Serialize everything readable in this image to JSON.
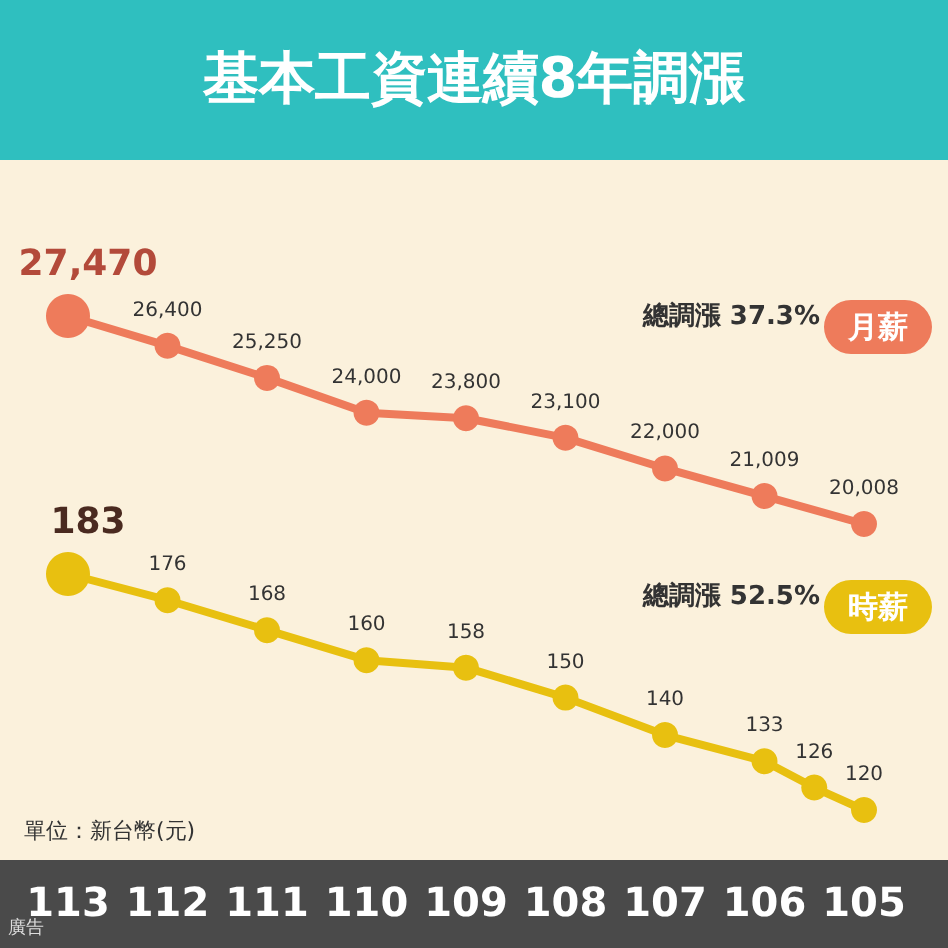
{
  "chart_data": [
    {
      "type": "line",
      "title": "基本工資連續8年調漲",
      "xlim": [
        113,
        105
      ],
      "xticks": [
        113,
        112,
        111,
        110,
        109,
        108,
        107,
        106,
        105
      ],
      "series": [
        {
          "name": "月薪",
          "color": "#ee7b5b",
          "x": [
            113,
            112,
            111,
            110,
            109,
            108,
            107,
            106,
            105
          ],
          "values": [
            27470,
            26400,
            25250,
            24000,
            23800,
            23100,
            22000,
            21009,
            20008
          ],
          "value_labels": [
            "27,470",
            "26,400",
            "25,250",
            "24,000",
            "23,800",
            "23,100",
            "22,000",
            "21,009",
            "20,008"
          ]
        }
      ],
      "marker": "circle",
      "legend": false,
      "tick_labels": false,
      "annotations": [
        "總調漲 37.3%"
      ]
    },
    {
      "type": "line",
      "xlim": [
        113,
        105
      ],
      "xticks": [
        113,
        112,
        111,
        110,
        109,
        108,
        107,
        106,
        105
      ],
      "series": [
        {
          "name": "時薪",
          "color": "#e8c010",
          "x": [
            113,
            112,
            111,
            110,
            109,
            108,
            107,
            106,
            105.5,
            105
          ],
          "values": [
            183,
            176,
            168,
            160,
            158,
            150,
            140,
            133,
            126,
            120
          ],
          "value_labels": [
            "183",
            "176",
            "168",
            "160",
            "158",
            "150",
            "140",
            "133",
            "126",
            "120"
          ]
        }
      ],
      "marker": "circle",
      "legend": false,
      "tick_labels": "x",
      "annotations": [
        "總調漲 52.5%",
        "單位：新台幣(元)",
        "廣告"
      ]
    }
  ]
}
